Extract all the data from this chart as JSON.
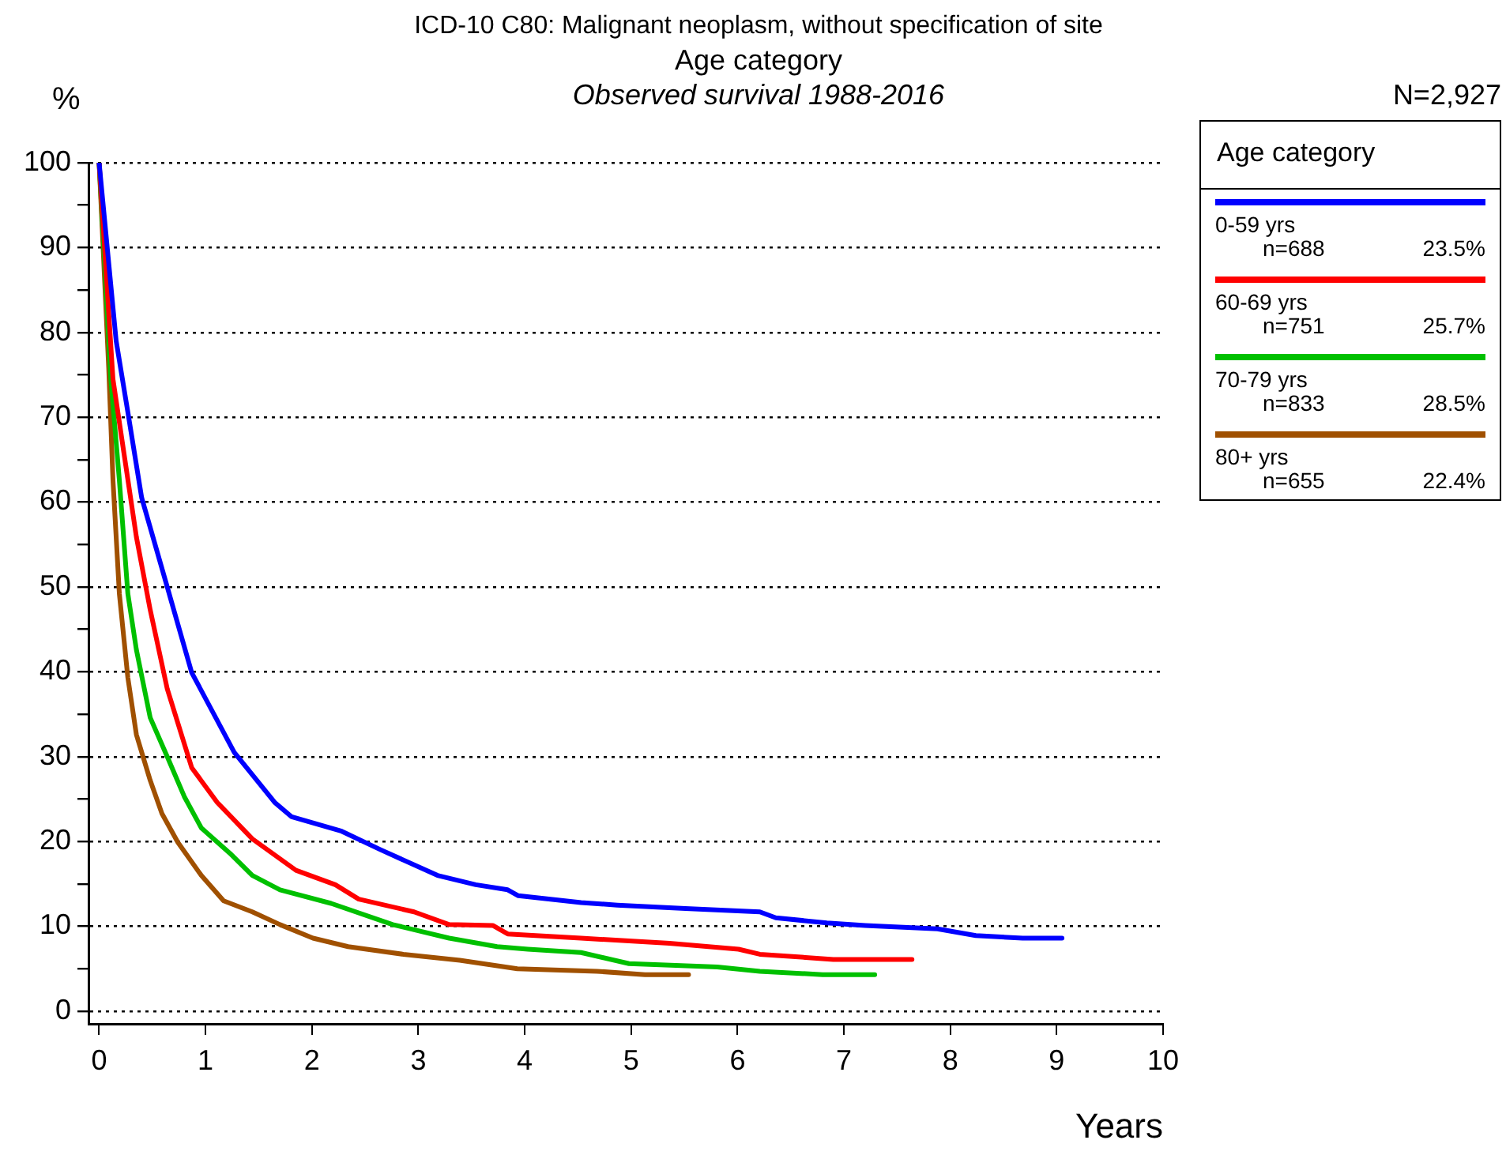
{
  "chart_data": {
    "type": "line",
    "title": "ICD-10 C80: Malignant neoplasm, without specification of site",
    "subtitle": "Age category",
    "xlabel": "Years",
    "ylabel": "%",
    "legend_title": "Age category",
    "annotations": [
      "Observed survival 1988-2016",
      "N=2,927",
      "n=688",
      "23.5%",
      "n=751",
      "25.7%",
      "n=833",
      "28.5%",
      "n=655",
      "22.4%"
    ],
    "xlim": [
      -0.1,
      10
    ],
    "xticks": [
      0,
      1,
      2,
      3,
      4,
      5,
      6,
      7,
      8,
      9,
      10
    ],
    "ylim": [
      -1.5,
      100
    ],
    "yticks": [
      0,
      {
        "value": 5,
        "label": null
      },
      10,
      {
        "value": 15,
        "label": null
      },
      20,
      {
        "value": 25,
        "label": null
      },
      30,
      {
        "value": 35,
        "label": null
      },
      40,
      {
        "value": 45,
        "label": null
      },
      50,
      {
        "value": 55,
        "label": null
      },
      60,
      {
        "value": 65,
        "label": null
      },
      70,
      {
        "value": 75,
        "label": null
      },
      80,
      {
        "value": 85,
        "label": null
      },
      90,
      {
        "value": 95,
        "label": null
      },
      100
    ],
    "grid": "y",
    "legend": "top right",
    "marker": "none",
    "line_style": "solid",
    "series": [
      {
        "name": "0-59 yrs",
        "color": "#0000ff",
        "x": [
          0,
          0.16,
          0.27,
          0.4,
          0.64,
          0.87,
          1.27,
          1.65,
          1.81,
          2.28,
          2.65,
          3.18,
          3.54,
          3.84,
          3.94,
          4.53,
          4.87,
          5.51,
          6.21,
          6.36,
          6.84,
          7.2,
          7.88,
          8.24,
          8.68,
          9.05
        ],
        "values": [
          100,
          79,
          70.6,
          60.5,
          50,
          39.9,
          30.5,
          24.6,
          22.9,
          21.2,
          19,
          16,
          14.9,
          14.3,
          13.6,
          12.8,
          12.5,
          12.1,
          11.7,
          11,
          10.4,
          10.1,
          9.7,
          8.9,
          8.6,
          8.6
        ]
      },
      {
        "name": "60-69 yrs",
        "color": "#ff0000",
        "x": [
          0,
          0.13,
          0.24,
          0.35,
          0.48,
          0.64,
          0.87,
          1.11,
          1.44,
          1.85,
          2.22,
          2.44,
          2.96,
          3.29,
          3.7,
          3.84,
          4.53,
          5.36,
          6.01,
          6.21,
          6.9,
          7.64
        ],
        "values": [
          100,
          74.5,
          65.2,
          55.9,
          47.3,
          38,
          28.7,
          24.6,
          20.3,
          16.6,
          14.9,
          13.2,
          11.7,
          10.2,
          10.1,
          9.1,
          8.6,
          8,
          7.3,
          6.7,
          6.1,
          6.1
        ]
      },
      {
        "name": "70-79 yrs",
        "color": "#00c000",
        "x": [
          0,
          0.11,
          0.19,
          0.27,
          0.35,
          0.48,
          0.64,
          0.8,
          0.96,
          1.23,
          1.44,
          1.7,
          2.18,
          2.76,
          3.29,
          3.74,
          4.03,
          4.53,
          4.98,
          5.81,
          6.21,
          6.8,
          7.29
        ],
        "values": [
          100,
          74.5,
          62.6,
          49.2,
          42.6,
          34.6,
          30,
          25.3,
          21.6,
          18.6,
          16,
          14.3,
          12.7,
          10.2,
          8.6,
          7.6,
          7.3,
          6.9,
          5.6,
          5.2,
          4.7,
          4.3,
          4.3
        ]
      },
      {
        "name": "80+ yrs",
        "color": "#a05000",
        "x": [
          0,
          0.09,
          0.13,
          0.19,
          0.27,
          0.35,
          0.48,
          0.59,
          0.74,
          0.96,
          1.17,
          1.44,
          1.7,
          2.01,
          2.34,
          2.86,
          3.39,
          3.93,
          4.68,
          5.13,
          5.54
        ],
        "values": [
          100,
          75.8,
          62.6,
          49.2,
          39.3,
          32.6,
          27.2,
          23.3,
          19.9,
          16,
          13,
          11.7,
          10.2,
          8.6,
          7.6,
          6.7,
          6,
          5,
          4.7,
          4.3,
          4.3
        ]
      }
    ]
  }
}
